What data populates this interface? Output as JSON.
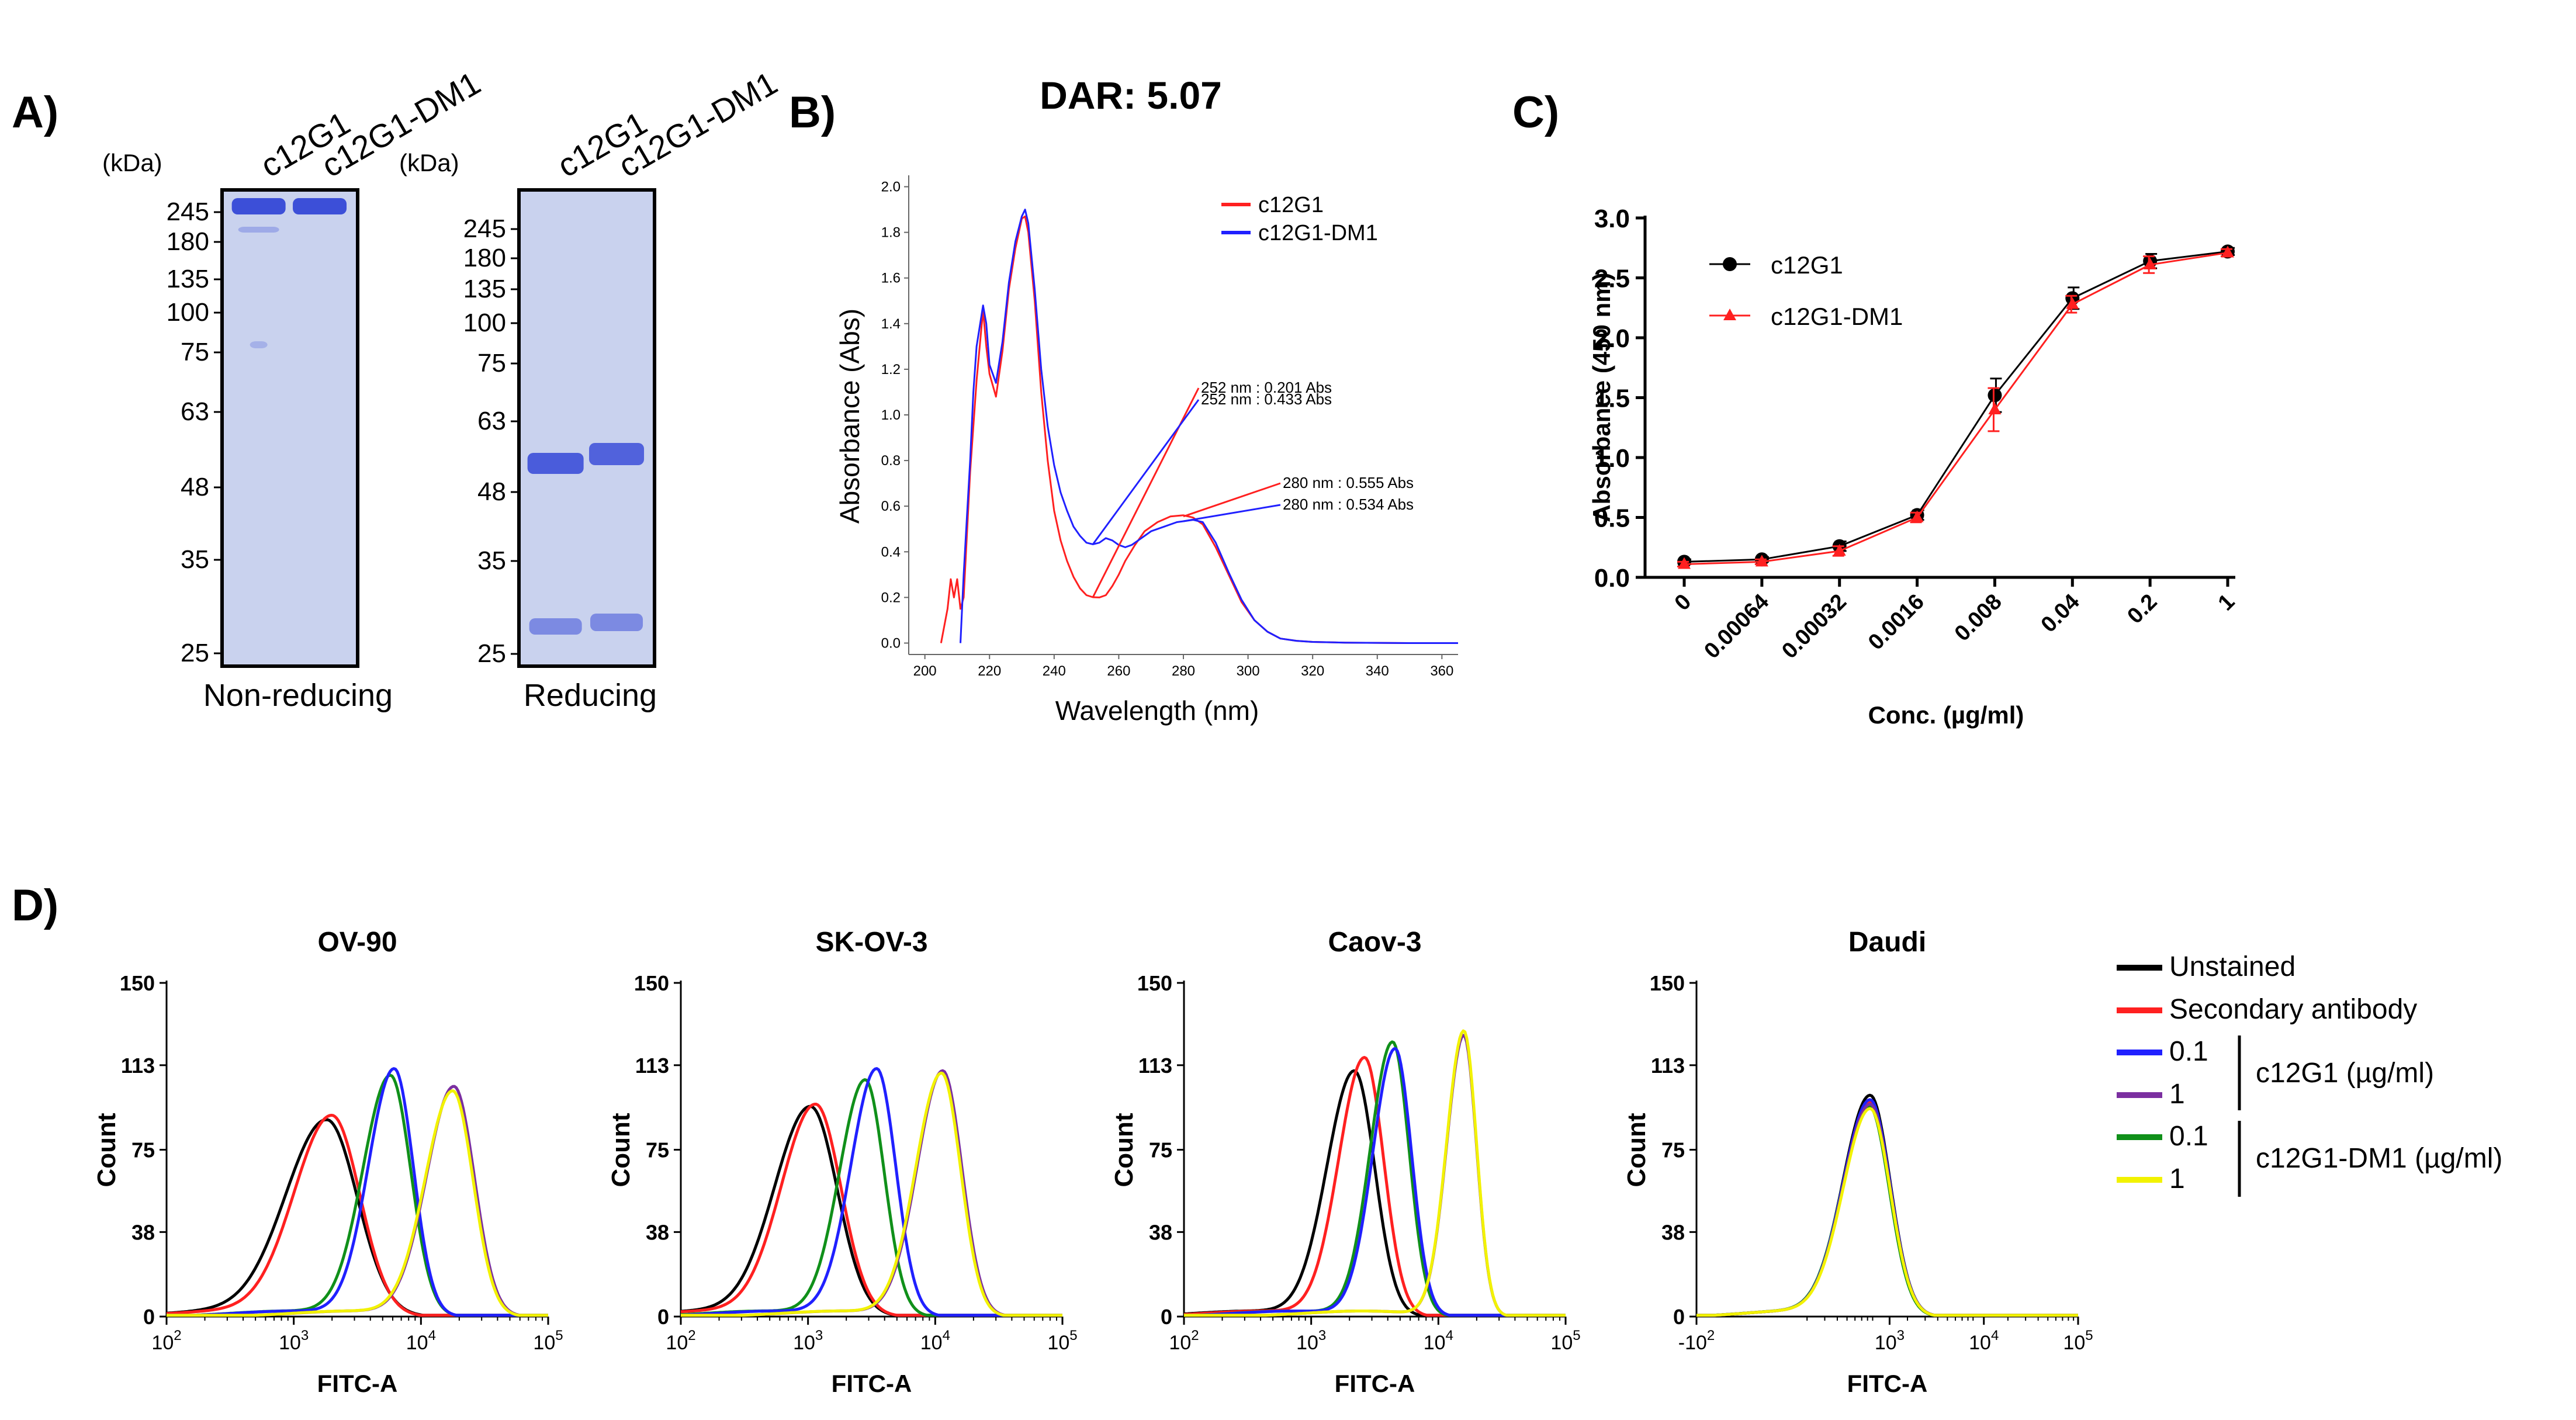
{
  "figure": {
    "panel_labels": {
      "a": "A)",
      "b": "B)",
      "c": "C)",
      "d": "D)"
    }
  },
  "panel_a": {
    "kda_label": "(kDa)",
    "non_reducing": {
      "title": "Non-reducing",
      "lanes": [
        "c12G1",
        "c12G1-DM1"
      ],
      "markers": [
        "245",
        "180",
        "135",
        "100",
        "75",
        "63",
        "48",
        "35",
        "25"
      ]
    },
    "reducing": {
      "title": "Reducing",
      "lanes": [
        "c12G1",
        "c12G1-DM1"
      ],
      "markers": [
        "245",
        "180",
        "135",
        "100",
        "75",
        "63",
        "48",
        "35",
        "25"
      ]
    }
  },
  "colors": {
    "black": "#000000",
    "red": "#ff2020",
    "blue": "#2020ff",
    "purple": "#7b2fa0",
    "green": "#10901a",
    "yellow": "#f2f200",
    "gel_bg": "#c9d2ee",
    "band": "#3c4fd8"
  },
  "chart_data": [
    {
      "id": "B",
      "type": "line",
      "title": "DAR: 5.07",
      "xlabel": "Wavelength (nm)",
      "ylabel": "Absorbance (Abs)",
      "xlim": [
        195,
        365
      ],
      "ylim": [
        -0.05,
        2.05
      ],
      "xticks": [
        "200",
        "220",
        "240",
        "260",
        "280",
        "300",
        "320",
        "340",
        "360"
      ],
      "yticks": [
        "0.0",
        "0.2",
        "0.4",
        "0.6",
        "0.8",
        "1.0",
        "1.2",
        "1.4",
        "1.6",
        "1.8",
        "2.0"
      ],
      "legend": [
        "c12G1",
        "c12G1-DM1"
      ],
      "annotations": [
        {
          "text": "252 nm : 0.201 Abs",
          "series": "c12G1",
          "x": 252,
          "y": 0.201
        },
        {
          "text": "252 nm : 0.433 Abs",
          "series": "c12G1-DM1",
          "x": 252,
          "y": 0.433
        },
        {
          "text": "280 nm : 0.555 Abs",
          "series": "c12G1",
          "x": 280,
          "y": 0.555
        },
        {
          "text": "280 nm : 0.534 Abs",
          "series": "c12G1-DM1",
          "x": 280,
          "y": 0.534
        }
      ],
      "series": [
        {
          "name": "c12G1",
          "color": "red",
          "x": [
            205,
            207,
            208,
            209,
            210,
            211,
            212,
            214,
            216,
            218,
            219,
            220,
            222,
            224,
            226,
            228,
            230,
            231,
            232,
            234,
            236,
            238,
            240,
            242,
            244,
            246,
            248,
            250,
            252,
            254,
            256,
            258,
            260,
            262,
            265,
            268,
            272,
            276,
            280,
            283,
            286,
            290,
            294,
            298,
            302,
            306,
            310,
            315,
            320,
            330,
            340,
            350,
            360,
            365
          ],
          "y": [
            0.0,
            0.15,
            0.28,
            0.2,
            0.28,
            0.15,
            0.2,
            0.75,
            1.15,
            1.46,
            1.3,
            1.18,
            1.08,
            1.28,
            1.55,
            1.73,
            1.86,
            1.87,
            1.8,
            1.5,
            1.1,
            0.8,
            0.58,
            0.45,
            0.36,
            0.29,
            0.24,
            0.21,
            0.201,
            0.2,
            0.21,
            0.25,
            0.3,
            0.36,
            0.43,
            0.49,
            0.53,
            0.555,
            0.56,
            0.55,
            0.52,
            0.42,
            0.3,
            0.18,
            0.1,
            0.05,
            0.02,
            0.01,
            0.005,
            0.002,
            0.001,
            0.0,
            0.0,
            0.0
          ]
        },
        {
          "name": "c12G1-DM1",
          "color": "blue",
          "x": [
            211,
            212,
            213,
            214,
            215,
            216,
            218,
            219,
            220,
            222,
            224,
            226,
            228,
            230,
            231,
            232,
            234,
            236,
            238,
            240,
            242,
            244,
            246,
            248,
            250,
            252,
            254,
            256,
            258,
            260,
            262,
            264,
            266,
            268,
            270,
            274,
            278,
            280,
            283,
            286,
            290,
            294,
            298,
            302,
            306,
            310,
            315,
            320,
            330,
            340,
            350,
            360,
            365
          ],
          "y": [
            0.0,
            0.3,
            0.55,
            0.8,
            1.1,
            1.3,
            1.48,
            1.4,
            1.22,
            1.14,
            1.32,
            1.58,
            1.76,
            1.87,
            1.9,
            1.84,
            1.55,
            1.2,
            0.95,
            0.78,
            0.66,
            0.58,
            0.51,
            0.47,
            0.44,
            0.433,
            0.44,
            0.46,
            0.45,
            0.43,
            0.42,
            0.43,
            0.45,
            0.47,
            0.49,
            0.51,
            0.53,
            0.534,
            0.54,
            0.53,
            0.44,
            0.31,
            0.19,
            0.1,
            0.05,
            0.02,
            0.01,
            0.005,
            0.002,
            0.001,
            0.0,
            0.0,
            0.0
          ]
        }
      ]
    },
    {
      "id": "C",
      "type": "line",
      "title": "",
      "xlabel": "Conc. (µg/ml)",
      "ylabel": "Absorbance (450 nm)",
      "categories": [
        "0",
        "0.00064",
        "0.00032",
        "0.0016",
        "0.008",
        "0.04",
        "0.2",
        "1"
      ],
      "ylim": [
        0,
        3.0
      ],
      "yticks": [
        "0.0",
        "0.5",
        "1.0",
        "1.5",
        "2.0",
        "2.5",
        "3.0"
      ],
      "series": [
        {
          "name": "c12G1",
          "color": "black",
          "marker": "circle",
          "values": [
            0.13,
            0.15,
            0.26,
            0.52,
            1.52,
            2.33,
            2.64,
            2.72
          ],
          "errors": [
            0.02,
            0.02,
            0.04,
            0.04,
            0.14,
            0.09,
            0.06,
            0.03
          ]
        },
        {
          "name": "c12G1-DM1",
          "color": "red",
          "marker": "triangle",
          "values": [
            0.11,
            0.13,
            0.22,
            0.5,
            1.4,
            2.28,
            2.61,
            2.71
          ],
          "errors": [
            0.02,
            0.02,
            0.04,
            0.04,
            0.18,
            0.07,
            0.07,
            0.03
          ]
        }
      ]
    },
    {
      "id": "D",
      "type": "line",
      "subtype": "histogram-overlay",
      "xlabel": "FITC-A",
      "ylabel": "Count",
      "ylim": [
        0,
        150
      ],
      "yticks": [
        "0",
        "38",
        "75",
        "113",
        "150"
      ],
      "legend": [
        {
          "label": "Unstained",
          "color": "black"
        },
        {
          "label": "Secondary antibody",
          "color": "red"
        },
        {
          "label": "0.1",
          "color": "blue"
        },
        {
          "label": "1",
          "color": "purple"
        },
        {
          "label": "0.1",
          "color": "green"
        },
        {
          "label": "1",
          "color": "yellow"
        }
      ],
      "legend_groups": [
        "c12G1 (µg/ml)",
        "c12G1-DM1 (µg/ml)"
      ],
      "panels": [
        {
          "title": "OV-90",
          "xlim_log": [
            2,
            5
          ],
          "x_ticks": [
            {
              "base": "10",
              "exp": "2"
            },
            {
              "base": "10",
              "exp": "3"
            },
            {
              "base": "10",
              "exp": "4"
            },
            {
              "base": "10",
              "exp": "5"
            }
          ],
          "peaks": [
            {
              "color": "black",
              "center": 3.26,
              "height": 88,
              "width": 0.24
            },
            {
              "color": "red",
              "center": 3.3,
              "height": 90,
              "width": 0.22
            },
            {
              "color": "blue",
              "center": 3.79,
              "height": 111,
              "width": 0.15
            },
            {
              "color": "green",
              "center": 3.76,
              "height": 108,
              "width": 0.16
            },
            {
              "color": "purple",
              "center": 4.26,
              "height": 103,
              "width": 0.16
            },
            {
              "color": "yellow",
              "center": 4.25,
              "height": 101,
              "width": 0.16
            }
          ]
        },
        {
          "title": "SK-OV-3",
          "xlim_log": [
            2,
            5
          ],
          "x_ticks": [
            {
              "base": "10",
              "exp": "2"
            },
            {
              "base": "10",
              "exp": "3"
            },
            {
              "base": "10",
              "exp": "4"
            },
            {
              "base": "10",
              "exp": "5"
            }
          ],
          "peaks": [
            {
              "color": "black",
              "center": 3.02,
              "height": 94,
              "width": 0.21
            },
            {
              "color": "red",
              "center": 3.06,
              "height": 95,
              "width": 0.2
            },
            {
              "color": "blue",
              "center": 3.54,
              "height": 111,
              "width": 0.15
            },
            {
              "color": "green",
              "center": 3.45,
              "height": 106,
              "width": 0.15
            },
            {
              "color": "purple",
              "center": 4.06,
              "height": 110,
              "width": 0.15
            },
            {
              "color": "yellow",
              "center": 4.05,
              "height": 109,
              "width": 0.15
            }
          ]
        },
        {
          "title": "Caov-3",
          "xlim_log": [
            2,
            5
          ],
          "x_ticks": [
            {
              "base": "10",
              "exp": "2"
            },
            {
              "base": "10",
              "exp": "3"
            },
            {
              "base": "10",
              "exp": "4"
            },
            {
              "base": "10",
              "exp": "5"
            }
          ],
          "peaks": [
            {
              "color": "black",
              "center": 3.34,
              "height": 110,
              "width": 0.16
            },
            {
              "color": "red",
              "center": 3.42,
              "height": 116,
              "width": 0.15
            },
            {
              "color": "blue",
              "center": 3.66,
              "height": 120,
              "width": 0.13
            },
            {
              "color": "green",
              "center": 3.64,
              "height": 123,
              "width": 0.13
            },
            {
              "color": "purple",
              "center": 4.2,
              "height": 126,
              "width": 0.1
            },
            {
              "color": "yellow",
              "center": 4.2,
              "height": 128,
              "width": 0.1
            }
          ]
        },
        {
          "title": "Daudi",
          "xlim_log": [
            1.2,
            5
          ],
          "x_ticks": [
            {
              "base": "-10",
              "exp": "2"
            },
            {
              "base": "10",
              "exp": "3"
            },
            {
              "base": "10",
              "exp": "4"
            },
            {
              "base": "10",
              "exp": "5"
            }
          ],
          "peaks": [
            {
              "color": "black",
              "center": 2.93,
              "height": 99,
              "width": 0.2
            },
            {
              "color": "red",
              "center": 2.93,
              "height": 96,
              "width": 0.2
            },
            {
              "color": "blue",
              "center": 2.93,
              "height": 97,
              "width": 0.2
            },
            {
              "color": "purple",
              "center": 2.93,
              "height": 95,
              "width": 0.2
            },
            {
              "color": "green",
              "center": 2.92,
              "height": 94,
              "width": 0.2
            },
            {
              "color": "yellow",
              "center": 2.93,
              "height": 93,
              "width": 0.2
            }
          ]
        }
      ]
    }
  ]
}
